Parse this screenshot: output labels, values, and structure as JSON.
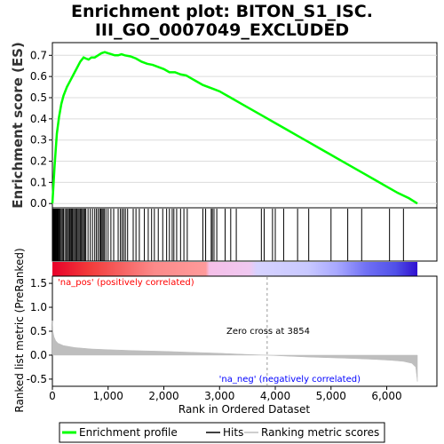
{
  "chart_data": {
    "type": "line",
    "title_line1": "Enrichment plot: BITON_S1_ISC.",
    "title_line2": "III_GO_0007049_EXCLUDED",
    "es_panel": {
      "ylabel": "Enrichment score (ES)",
      "ylim": [
        -0.02,
        0.76
      ],
      "yticks": [
        0.0,
        0.1,
        0.2,
        0.3,
        0.4,
        0.5,
        0.6,
        0.7
      ],
      "ytick_labels": [
        "0.0",
        "0.1",
        "0.2",
        "0.3",
        "0.4",
        "0.5",
        "0.6",
        "0.7"
      ],
      "series": [
        {
          "name": "Enrichment profile",
          "color": "#00ff00",
          "x": [
            0,
            40,
            80,
            120,
            160,
            200,
            260,
            320,
            380,
            440,
            500,
            560,
            600,
            650,
            700,
            760,
            820,
            880,
            940,
            1000,
            1060,
            1120,
            1180,
            1240,
            1300,
            1400,
            1500,
            1600,
            1700,
            1800,
            1900,
            2000,
            2100,
            2200,
            2300,
            2400,
            2500,
            2600,
            2700,
            2800,
            2900,
            3000,
            3200,
            3400,
            3600,
            3800,
            4000,
            4200,
            4400,
            4600,
            4800,
            5000,
            5200,
            5400,
            5600,
            5800,
            6000,
            6200,
            6400,
            6550
          ],
          "y": [
            0.0,
            0.18,
            0.33,
            0.41,
            0.47,
            0.51,
            0.55,
            0.58,
            0.61,
            0.64,
            0.67,
            0.69,
            0.685,
            0.68,
            0.69,
            0.69,
            0.7,
            0.71,
            0.715,
            0.71,
            0.705,
            0.7,
            0.7,
            0.705,
            0.7,
            0.695,
            0.685,
            0.67,
            0.66,
            0.655,
            0.645,
            0.635,
            0.62,
            0.62,
            0.61,
            0.605,
            0.59,
            0.575,
            0.56,
            0.55,
            0.54,
            0.53,
            0.5,
            0.47,
            0.44,
            0.41,
            0.38,
            0.35,
            0.32,
            0.29,
            0.26,
            0.23,
            0.2,
            0.17,
            0.14,
            0.11,
            0.08,
            0.05,
            0.025,
            0.0
          ]
        }
      ]
    },
    "hits": [
      5,
      15,
      25,
      35,
      45,
      55,
      65,
      80,
      95,
      110,
      125,
      140,
      160,
      180,
      200,
      225,
      250,
      270,
      290,
      310,
      330,
      345,
      360,
      380,
      400,
      420,
      440,
      460,
      480,
      500,
      520,
      540,
      560,
      580,
      600,
      640,
      680,
      720,
      760,
      790,
      820,
      850,
      870,
      890,
      910,
      930,
      960,
      1000,
      1050,
      1100,
      1180,
      1220,
      1250,
      1280,
      1310,
      1350,
      1450,
      1500,
      1560,
      1650,
      1720,
      1780,
      1830,
      1900,
      1980,
      2050,
      2100,
      2150,
      2180,
      2230,
      2300,
      2360,
      2420,
      2700,
      2750,
      2850,
      2870,
      2900,
      2950,
      3100,
      3200,
      3300,
      3750,
      3800,
      3950,
      4000,
      4150,
      4400,
      4600,
      5000,
      5300,
      5550,
      6050,
      6300
    ],
    "rank_panel": {
      "ylabel": "Ranked list metric (PreRanked)",
      "ylim": [
        -0.65,
        1.65
      ],
      "yticks": [
        -0.5,
        0.0,
        0.5,
        1.0,
        1.5
      ],
      "ytick_labels": [
        "-0.5",
        "0.0",
        "0.5",
        "1.0",
        "1.5"
      ],
      "metric_x": [
        0,
        10,
        30,
        60,
        100,
        200,
        400,
        700,
        1000,
        1500,
        2000,
        2500,
        3000,
        3500,
        3854,
        4200,
        4600,
        5000,
        5400,
        5800,
        6100,
        6300,
        6450,
        6520,
        6550
      ],
      "metric_y": [
        0.72,
        0.5,
        0.38,
        0.3,
        0.25,
        0.2,
        0.16,
        0.13,
        0.115,
        0.095,
        0.08,
        0.06,
        0.04,
        0.015,
        0.0,
        -0.02,
        -0.04,
        -0.055,
        -0.07,
        -0.09,
        -0.11,
        -0.13,
        -0.17,
        -0.25,
        -0.55
      ],
      "color": "#bebebe",
      "zero_cross": 3854,
      "zero_cross_label": "Zero cross at 3854",
      "pos_label": "'na_pos' (positively correlated)",
      "neg_label": "'na_neg' (negatively correlated)",
      "pos_color": "#ff0000",
      "neg_color": "#0000ff"
    },
    "xaxis": {
      "xlabel": "Rank in Ordered Dataset",
      "xlim": [
        0,
        6900
      ],
      "xticks": [
        0,
        1000,
        2000,
        3000,
        4000,
        5000,
        6000
      ],
      "xtick_labels": [
        "0",
        "1,000",
        "2,000",
        "3,000",
        "4,000",
        "5,000",
        "6,000"
      ]
    },
    "legend": {
      "placement": "bottom",
      "items": [
        {
          "label": "Enrichment profile",
          "color": "#00ff00",
          "kind": "thick-line"
        },
        {
          "label": "Hits",
          "color": "#000000",
          "kind": "line"
        },
        {
          "label": "Ranking metric scores",
          "color": "#bebebe",
          "kind": "line"
        }
      ]
    }
  }
}
